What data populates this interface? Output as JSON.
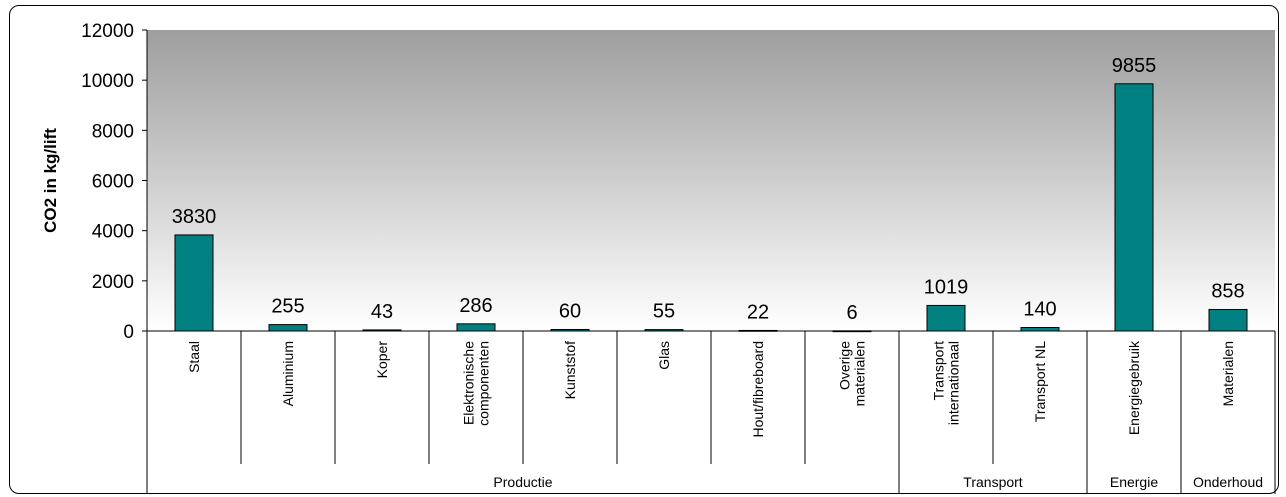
{
  "chart_data": {
    "type": "bar",
    "ylabel": "CO2 in kg/lift",
    "ylim": [
      0,
      12000
    ],
    "yticks": [
      0,
      2000,
      4000,
      6000,
      8000,
      10000,
      12000
    ],
    "grid": false,
    "categories": [
      "Staal",
      "Aluminium",
      "Koper",
      "Elektronische componenten",
      "Kunststof",
      "Glas",
      "Hout/fibreboard",
      "Overige materialen",
      "Transport internationaal",
      "Transport NL",
      "Energiegebruik",
      "Materialen"
    ],
    "category_lines": [
      [
        "Staal"
      ],
      [
        "Aluminium"
      ],
      [
        "Koper"
      ],
      [
        "Elektronische",
        "componenten"
      ],
      [
        "Kunststof"
      ],
      [
        "Glas"
      ],
      [
        "Hout/fibreboard"
      ],
      [
        "Overige",
        "materialen"
      ],
      [
        "Transport",
        "internationaal"
      ],
      [
        "Transport NL"
      ],
      [
        "Energiegebruik"
      ],
      [
        "Materialen"
      ]
    ],
    "values": [
      3830,
      255,
      43,
      286,
      60,
      55,
      22,
      6,
      1019,
      140,
      9855,
      858
    ],
    "data_labels": [
      "3830",
      "255",
      "43",
      "286",
      "60",
      "55",
      "22",
      "6",
      "1019",
      "140",
      "9855",
      "858"
    ],
    "groups": [
      {
        "label": "Productie",
        "start": 0,
        "count": 8
      },
      {
        "label": "Transport",
        "start": 8,
        "count": 2
      },
      {
        "label": "Energie",
        "start": 10,
        "count": 1
      },
      {
        "label": "Onderhoud",
        "start": 11,
        "count": 1
      }
    ],
    "colors": {
      "bar": "#008080",
      "bar_edge": "#000000",
      "plot_top": "#9e9e9e",
      "plot_bottom": "#ffffff"
    }
  }
}
